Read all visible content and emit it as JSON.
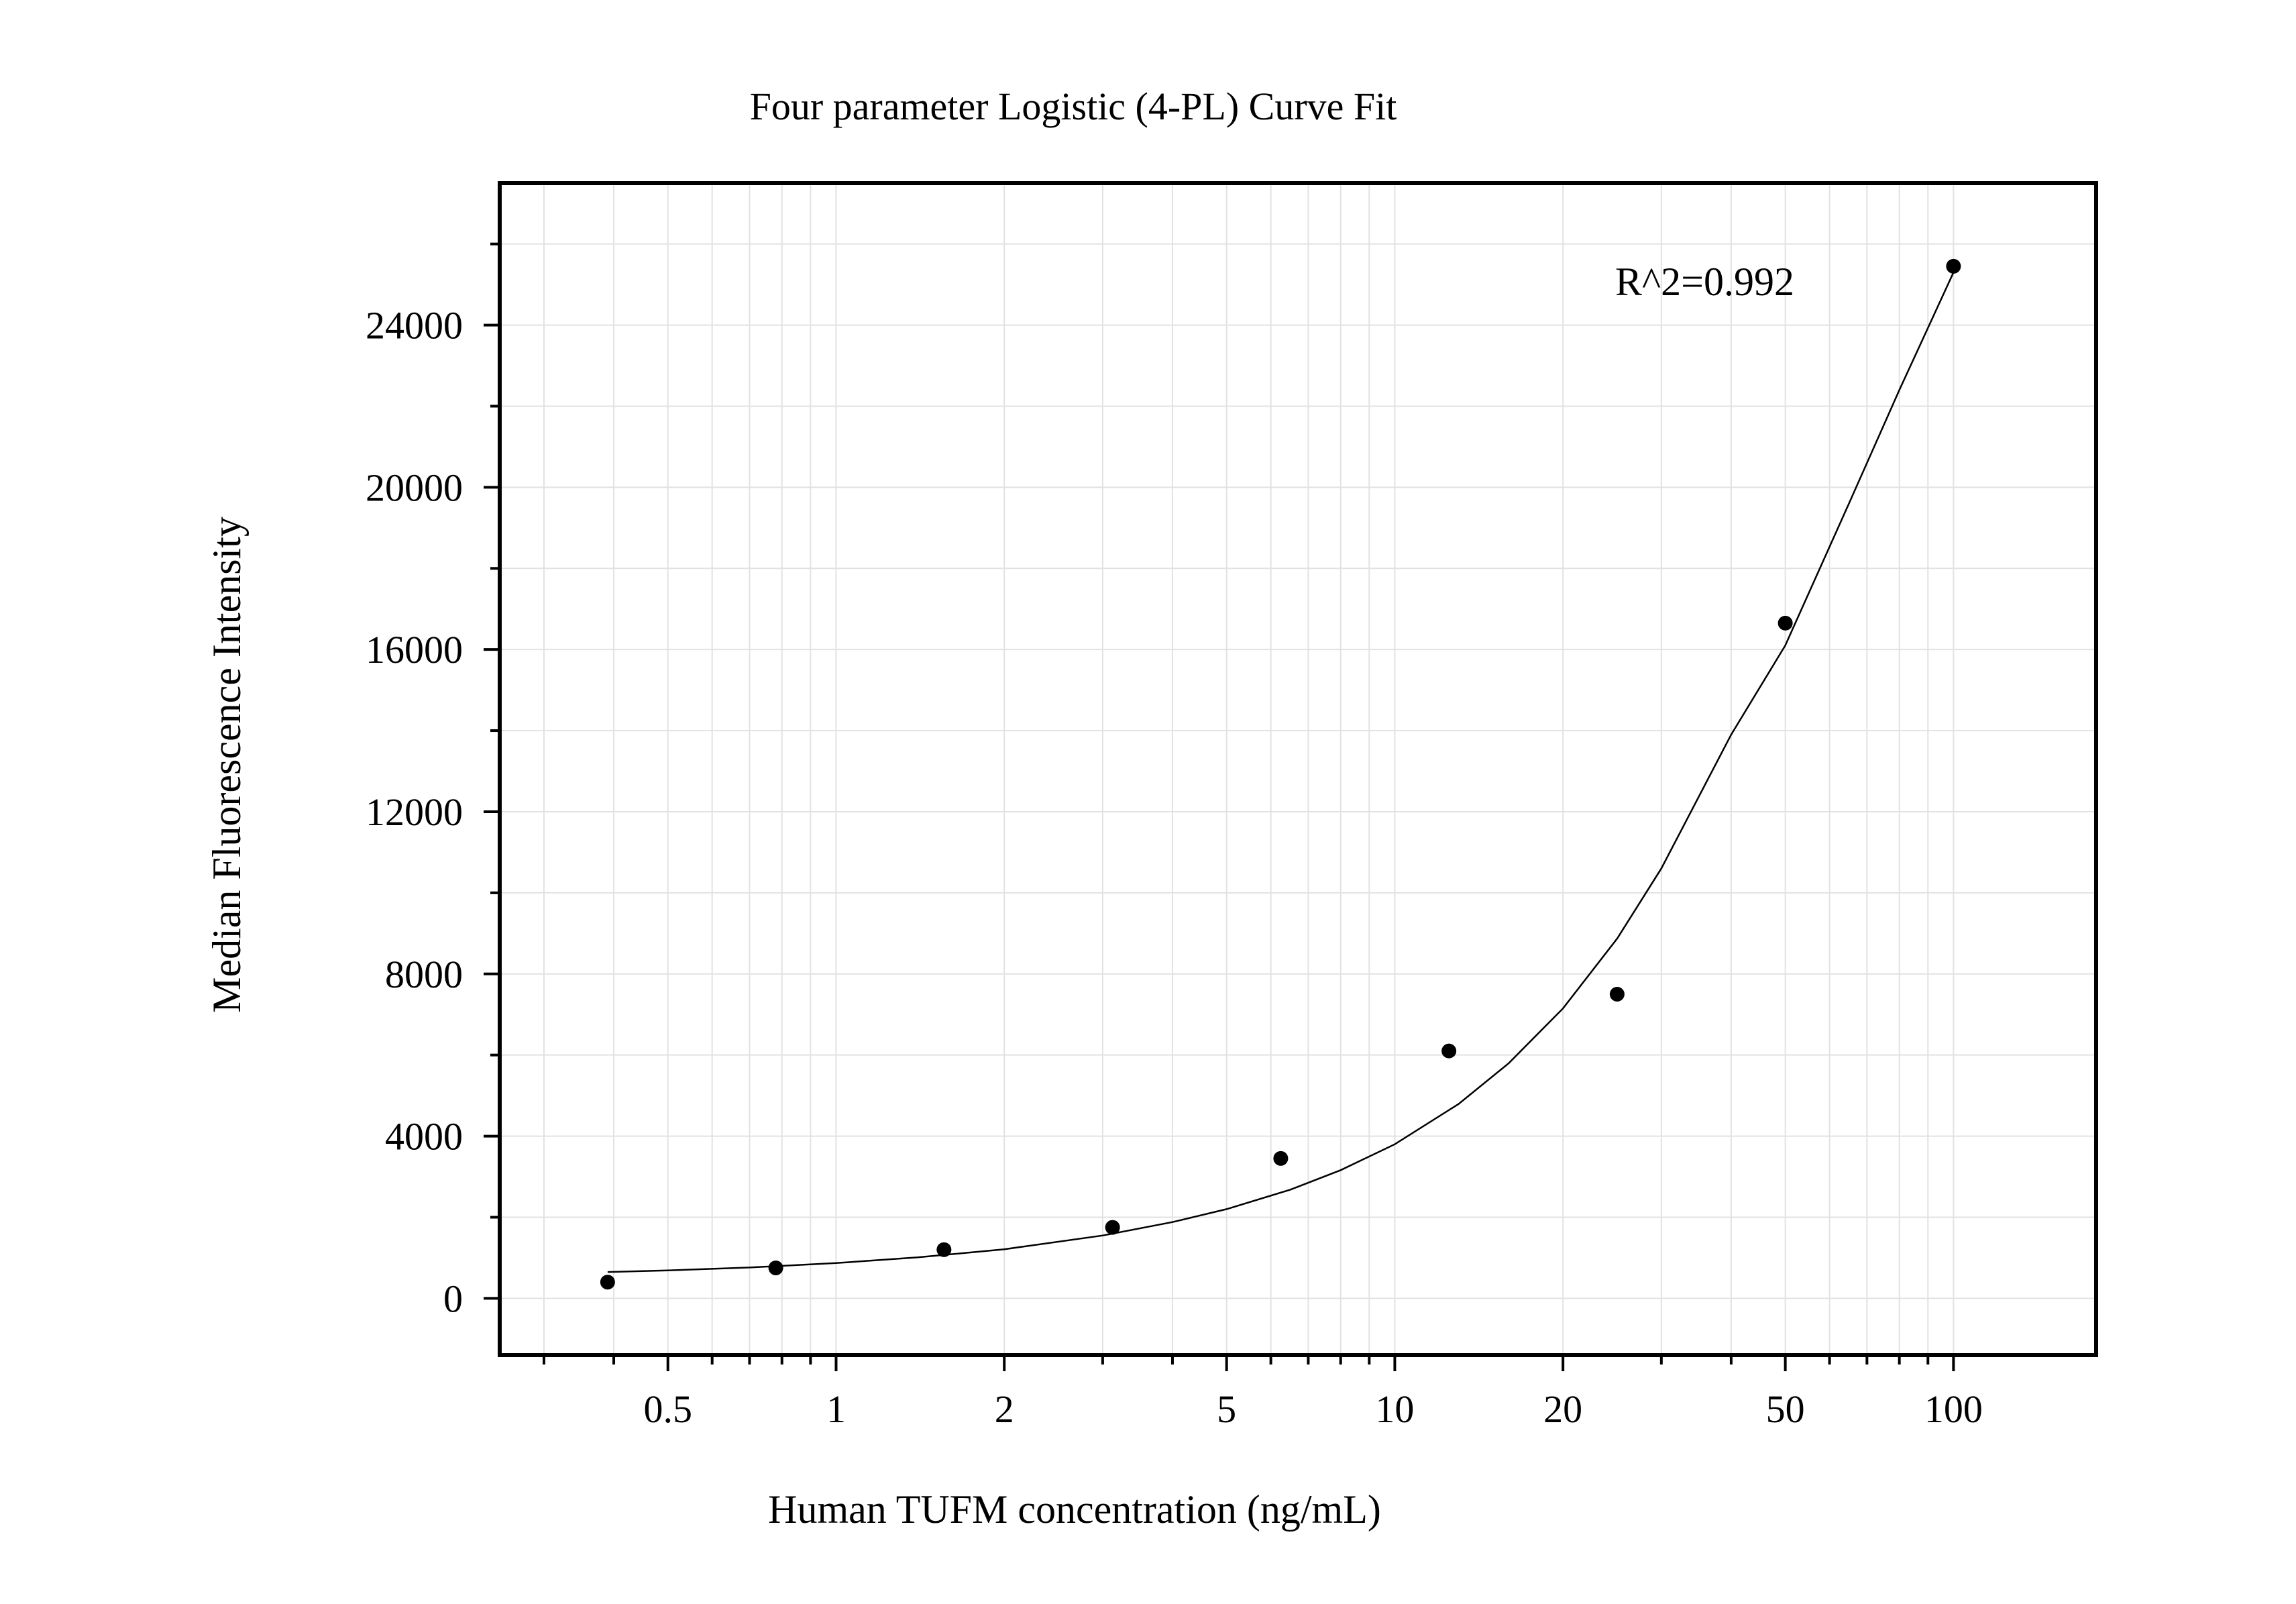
{
  "chart_data": {
    "type": "scatter",
    "title": "Four parameter Logistic (4-PL) Curve Fit",
    "xlabel": "Human TUFM concentration (ng/mL)",
    "ylabel": "Median Fluorescence Intensity",
    "x_scale": "log",
    "xlim": [
      0.25,
      180
    ],
    "ylim": [
      -1400,
      27500
    ],
    "x_ticks": [
      {
        "value": 0.5,
        "label": "0.5"
      },
      {
        "value": 1,
        "label": "1"
      },
      {
        "value": 2,
        "label": "2"
      },
      {
        "value": 5,
        "label": "5"
      },
      {
        "value": 10,
        "label": "10"
      },
      {
        "value": 20,
        "label": "20"
      },
      {
        "value": 50,
        "label": "50"
      },
      {
        "value": 100,
        "label": "100"
      }
    ],
    "y_ticks": [
      {
        "value": 0,
        "label": "0"
      },
      {
        "value": 4000,
        "label": "4000"
      },
      {
        "value": 8000,
        "label": "8000"
      },
      {
        "value": 12000,
        "label": "12000"
      },
      {
        "value": 16000,
        "label": "16000"
      },
      {
        "value": 20000,
        "label": "20000"
      },
      {
        "value": 24000,
        "label": "24000"
      }
    ],
    "grid": true,
    "points": {
      "x": [
        0.39,
        0.78,
        1.56,
        3.125,
        6.25,
        12.5,
        25,
        50,
        100
      ],
      "y": [
        400,
        750,
        1200,
        1750,
        3450,
        6100,
        7500,
        16650,
        25450
      ]
    },
    "fit_curve": {
      "model": "4-PL",
      "x": [
        0.39,
        0.5,
        0.7,
        1,
        1.4,
        2,
        3,
        4,
        5,
        6.5,
        8,
        10,
        13,
        16,
        20,
        25,
        30,
        40,
        50,
        65,
        80,
        100
      ],
      "y": [
        650,
        690,
        760,
        870,
        1010,
        1210,
        1550,
        1880,
        2200,
        2680,
        3160,
        3800,
        4790,
        5800,
        7150,
        8870,
        10600,
        13900,
        16100,
        19600,
        22400,
        25300
      ]
    },
    "annotations": [
      {
        "text": "R^2=0.992",
        "position": "top-right"
      }
    ],
    "colors": {
      "points": "#000000",
      "curve": "#000000",
      "grid": "#e2e2e2",
      "frame": "#000000"
    }
  }
}
